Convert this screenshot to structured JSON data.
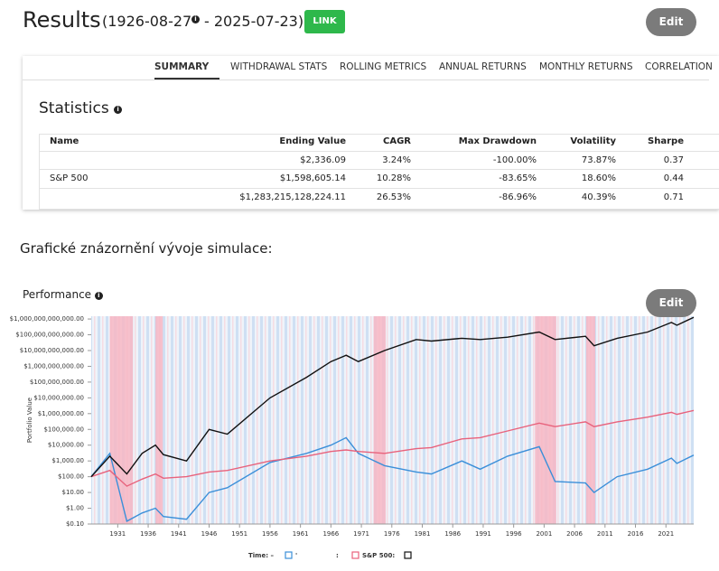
{
  "header": {
    "title": "Results",
    "date_start": "(1926-08-27",
    "date_end": "- 2025-07-23)",
    "link": "LINK",
    "edit": "Edit"
  },
  "tabs": [
    "SUMMARY",
    "WITHDRAWAL STATS",
    "ROLLING METRICS",
    "ANNUAL RETURNS",
    "MONTHLY RETURNS",
    "CORRELATION"
  ],
  "statistics": {
    "title": "Statistics",
    "columns": [
      "Name",
      "Ending Value",
      "CAGR",
      "Max Drawdown",
      "Volatility",
      "Sharpe"
    ],
    "rows": [
      {
        "values": [
          "$2,336.09",
          "3.24%",
          "-100.00%",
          "73.87%",
          "0.37"
        ]
      },
      {
        "name": "S&P 500",
        "values": [
          "$1,598,605.14",
          "10.28%",
          "-83.65%",
          "18.60%",
          "0.44"
        ]
      },
      {
        "values": [
          "$1,283,215,128,224.11",
          "26.53%",
          "-86.96%",
          "40.39%",
          "0.71"
        ]
      }
    ]
  },
  "caption": "Grafické znázornění vývoje simulace:",
  "chart_data": {
    "type": "line",
    "title": "Performance",
    "edit": "Edit",
    "ylabel": "Portfolio Value",
    "log_y": true,
    "legend_title": "Time: –",
    "legend_separator": ":",
    "x": [
      1926.65,
      1929.7,
      1932.5,
      1935,
      1937.2,
      1938.5,
      1942.3,
      1946,
      1949,
      1956,
      1962,
      1966,
      1968.5,
      1970.5,
      1974.8,
      1980,
      1982.5,
      1987.5,
      1990.5,
      1995,
      2000.2,
      2002.8,
      2007.8,
      2009.2,
      2013,
      2018,
      2021.9,
      2022.8,
      2025.56
    ],
    "series": [
      {
        "name": "'",
        "color": "#3b8fd9",
        "values": [
          100,
          3000,
          0.15,
          0.5,
          1,
          0.3,
          0.2,
          10,
          20,
          800,
          3000,
          10000,
          30000,
          3000,
          500,
          200,
          150,
          1000,
          300,
          2000,
          8000,
          50,
          40,
          10,
          100,
          300,
          1500,
          700,
          2336.09
        ]
      },
      {
        "name": "S&P 500:",
        "color": "#e8627c",
        "values": [
          100,
          250,
          25,
          70,
          150,
          80,
          100,
          200,
          250,
          1000,
          2000,
          4000,
          5000,
          4000,
          3000,
          6000,
          7000,
          25000,
          30000,
          80000,
          250000,
          150000,
          300000,
          150000,
          300000,
          600000,
          1200000,
          900000,
          1598605.14
        ]
      },
      {
        "color": "#111111",
        "values": [
          100,
          2000,
          150,
          3000,
          10000,
          2500,
          1000,
          100000,
          50000,
          10000000,
          200000000,
          2000000000,
          5000000000,
          2000000000,
          10000000000,
          50000000000,
          40000000000,
          60000000000,
          50000000000,
          70000000000,
          150000000000,
          50000000000,
          80000000000,
          20000000000,
          60000000000,
          150000000000,
          600000000000,
          400000000000,
          1283215128224.11
        ]
      }
    ],
    "shaded": [
      [
        1929.7,
        1933.5
      ],
      [
        1937.2,
        1938.4
      ],
      [
        1973.0,
        1975.0
      ],
      [
        1999.5,
        2003.0
      ],
      [
        2007.9,
        2009.4
      ]
    ],
    "shade_color": "#f7b6c3",
    "xlim": [
      1926.65,
      2025.56
    ],
    "xticks": [
      1931,
      1936,
      1941,
      1946,
      1951,
      1956,
      1961,
      1966,
      1971,
      1976,
      1981,
      1986,
      1991,
      1996,
      2001,
      2006,
      2011,
      2016,
      2021
    ],
    "ylim": [
      0.1,
      1500000000000
    ],
    "yticks": [
      {
        "value": 0.1,
        "label": "$0.10"
      },
      {
        "value": 1,
        "label": "$1.00"
      },
      {
        "value": 10,
        "label": "$10.00"
      },
      {
        "value": 100,
        "label": "$100.00"
      },
      {
        "value": 1000,
        "label": "$1,000.00"
      },
      {
        "value": 10000,
        "label": "$10,000.00"
      },
      {
        "value": 100000,
        "label": "$100,000.00"
      },
      {
        "value": 1000000,
        "label": "$1,000,000.00"
      },
      {
        "value": 10000000,
        "label": "$10,000,000.00"
      },
      {
        "value": 100000000,
        "label": "$100,000,000.00"
      },
      {
        "value": 1000000000,
        "label": "$1,000,000,000.00"
      },
      {
        "value": 10000000000,
        "label": "$10,000,000,000.00"
      },
      {
        "value": 100000000000,
        "label": "$100,000,000,000.00"
      },
      {
        "value": 1000000000000,
        "label": "$1,000,000,000,000.00"
      }
    ]
  }
}
